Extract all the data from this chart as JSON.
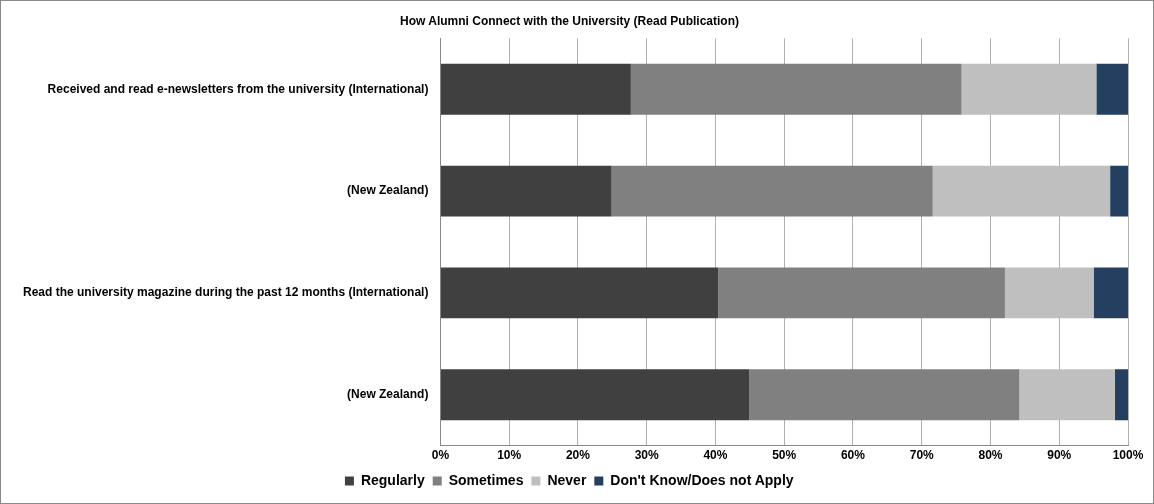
{
  "chart_data": {
    "type": "bar",
    "orientation": "horizontal",
    "stacked": true,
    "title": "How Alumni Connect with the University (Read Publication)",
    "categories": [
      "Received and read e-newsletters from the university (International)",
      "(New Zealand)",
      "Read the university magazine during the past 12 months (International)",
      "(New Zealand)"
    ],
    "series": [
      {
        "name": "Regularly",
        "color": "#404040",
        "values": [
          27.7,
          24.9,
          40.4,
          44.9
        ]
      },
      {
        "name": "Sometimes",
        "color": "#808080",
        "values": [
          48.1,
          46.7,
          41.7,
          39.3
        ]
      },
      {
        "name": "Never",
        "color": "#bfbfbf",
        "values": [
          19.6,
          25.8,
          12.9,
          13.9
        ]
      },
      {
        "name": "Don't Know/Does not Apply",
        "color": "#243f60",
        "values": [
          4.6,
          2.6,
          5.0,
          1.9
        ]
      }
    ],
    "xlim": [
      0,
      100
    ],
    "xticks": [
      {
        "value": 0,
        "label": "0%"
      },
      {
        "value": 10,
        "label": "10%"
      },
      {
        "value": 20,
        "label": "20%"
      },
      {
        "value": 30,
        "label": "30%"
      },
      {
        "value": 40,
        "label": "40%"
      },
      {
        "value": 50,
        "label": "50%"
      },
      {
        "value": 60,
        "label": "60%"
      },
      {
        "value": 70,
        "label": "70%"
      },
      {
        "value": 80,
        "label": "80%"
      },
      {
        "value": 90,
        "label": "90%"
      },
      {
        "value": 100,
        "label": "100%"
      }
    ],
    "grid": "x",
    "legend": "bottom"
  }
}
